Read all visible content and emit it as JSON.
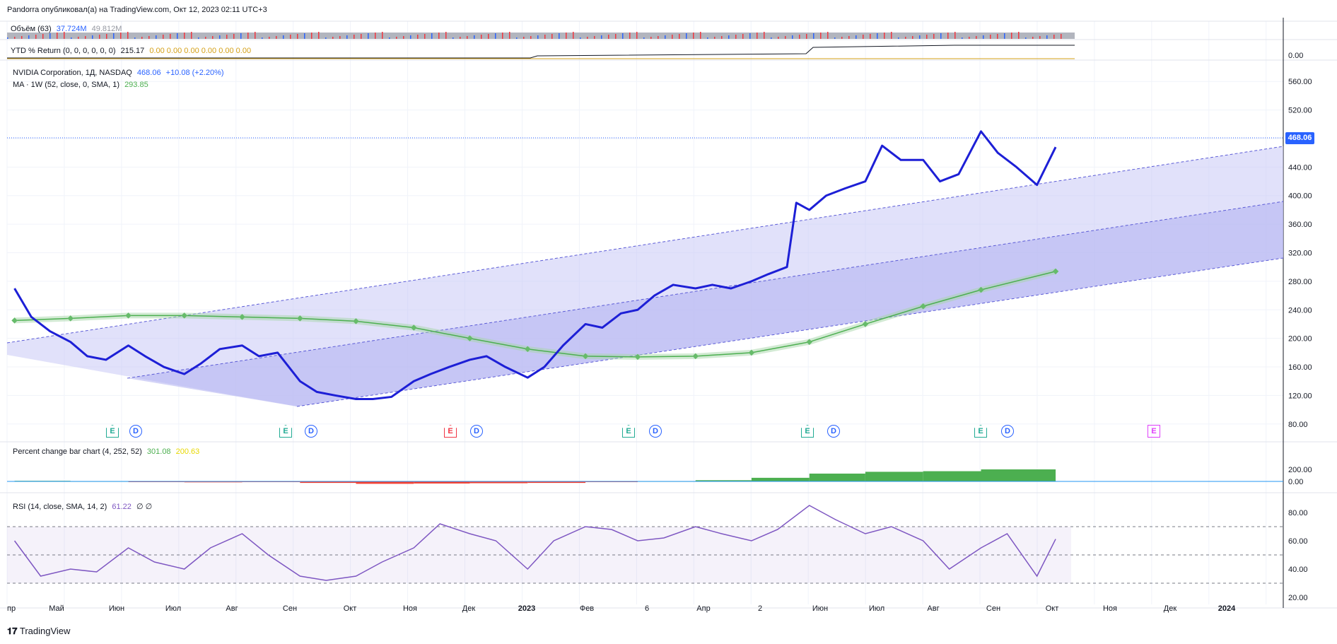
{
  "header": {
    "published": "Pandorra опубликовал(а) на TradingView.com, Окт 12, 2023 02:11 UTC+3"
  },
  "volume_pane": {
    "label": "Объём (63)",
    "value1": "37.724M",
    "value2": "49.812M"
  },
  "ytd_pane": {
    "label": "YTD % Return (0, 0, 0, 0, 0, 0)",
    "value": "215.17",
    "zeros": "0.00 0.00 0.00 0.00 0.00 0.00",
    "axis_label": "0.00"
  },
  "main_pane": {
    "symbol": "NVIDIA Corporation, 1Д, NASDAQ",
    "last": "468.06",
    "change": "+10.08 (+2.20%)",
    "ma_label": "MA · 1W (52, close, 0, SMA, 1)",
    "ma_value": "293.85",
    "price_tag": "468.06"
  },
  "pct_pane": {
    "label": "Percent change bar chart (4, 252, 52)",
    "value1": "301.08",
    "value2": "200.63"
  },
  "rsi_pane": {
    "label": "RSI (14, close, SMA, 14, 2)",
    "value": "61.22",
    "extra": "∅ ∅"
  },
  "events": [
    {
      "type": "E",
      "color": "green"
    },
    {
      "type": "D"
    },
    {
      "type": "E",
      "color": "green"
    },
    {
      "type": "D"
    },
    {
      "type": "E",
      "color": "red"
    },
    {
      "type": "D"
    },
    {
      "type": "E",
      "color": "green"
    },
    {
      "type": "D"
    },
    {
      "type": "E",
      "color": "green"
    },
    {
      "type": "D"
    },
    {
      "type": "E",
      "color": "green"
    },
    {
      "type": "D"
    },
    {
      "type": "E",
      "color": "pink"
    }
  ],
  "footer": {
    "brand": "TradingView",
    "logo_icon": "tradingview-logo-icon"
  },
  "colors": {
    "price_line": "#1d1fd6",
    "ma_line": "#4caf50",
    "channel_fill": "#c8c8f5",
    "pct_positive": "#4caf50",
    "pct_negative": "#f44336",
    "rsi_line": "#7e57c2",
    "accent": "#2962ff"
  },
  "chart_data": [
    {
      "type": "line",
      "series": [
        {
          "name": "NVIDIA Corporation",
          "x": [
            "2022-04-01",
            "2022-04-10",
            "2022-04-20",
            "2022-05-01",
            "2022-05-10",
            "2022-05-20",
            "2022-06-01",
            "2022-06-10",
            "2022-06-20",
            "2022-07-01",
            "2022-07-10",
            "2022-07-20",
            "2022-08-01",
            "2022-08-10",
            "2022-08-20",
            "2022-09-01",
            "2022-09-10",
            "2022-09-20",
            "2022-10-01",
            "2022-10-10",
            "2022-10-20",
            "2022-11-01",
            "2022-11-10",
            "2022-11-20",
            "2022-12-01",
            "2022-12-10",
            "2022-12-20",
            "2023-01-01",
            "2023-01-10",
            "2023-01-20",
            "2023-02-01",
            "2023-02-10",
            "2023-02-20",
            "2023-03-01",
            "2023-03-10",
            "2023-03-20",
            "2023-04-01",
            "2023-04-10",
            "2023-04-20",
            "2023-05-01",
            "2023-05-10",
            "2023-05-20",
            "2023-05-25",
            "2023-06-01",
            "2023-06-10",
            "2023-06-20",
            "2023-07-01",
            "2023-07-10",
            "2023-07-20",
            "2023-08-01",
            "2023-08-10",
            "2023-08-20",
            "2023-09-01",
            "2023-09-10",
            "2023-09-20",
            "2023-10-01",
            "2023-10-11"
          ],
          "values": [
            270,
            230,
            210,
            195,
            175,
            170,
            190,
            175,
            160,
            150,
            165,
            185,
            190,
            175,
            180,
            140,
            125,
            120,
            115,
            115,
            118,
            140,
            150,
            160,
            170,
            175,
            160,
            145,
            160,
            190,
            220,
            215,
            235,
            240,
            260,
            275,
            270,
            275,
            270,
            280,
            290,
            300,
            390,
            380,
            400,
            410,
            420,
            470,
            450,
            450,
            420,
            430,
            490,
            460,
            440,
            415,
            468
          ]
        },
        {
          "name": "MA · 1W (52, close, 0, SMA, 1)",
          "x": [
            "2022-04-01",
            "2022-05-01",
            "2022-06-01",
            "2022-07-01",
            "2022-08-01",
            "2022-09-01",
            "2022-10-01",
            "2022-11-01",
            "2022-12-01",
            "2023-01-01",
            "2023-02-01",
            "2023-03-01",
            "2023-04-01",
            "2023-05-01",
            "2023-06-01",
            "2023-07-01",
            "2023-08-01",
            "2023-09-01",
            "2023-10-11"
          ],
          "values": [
            225,
            228,
            232,
            232,
            230,
            228,
            224,
            215,
            200,
            185,
            175,
            174,
            175,
            180,
            195,
            220,
            245,
            268,
            293.85
          ]
        }
      ],
      "yticks": [
        80,
        120,
        160,
        200,
        240,
        280,
        320,
        360,
        400,
        440,
        480,
        520,
        560
      ],
      "ylim": [
        60,
        580
      ]
    },
    {
      "type": "line",
      "series": [
        {
          "name": "RSI (14, close, SMA, 14, 2)",
          "x": [
            "2022-04-01",
            "2022-04-15",
            "2022-05-01",
            "2022-05-15",
            "2022-06-01",
            "2022-06-15",
            "2022-07-01",
            "2022-07-15",
            "2022-08-01",
            "2022-08-15",
            "2022-09-01",
            "2022-09-15",
            "2022-10-01",
            "2022-10-15",
            "2022-11-01",
            "2022-11-15",
            "2022-12-01",
            "2022-12-15",
            "2023-01-01",
            "2023-01-15",
            "2023-02-01",
            "2023-02-15",
            "2023-03-01",
            "2023-03-15",
            "2023-04-01",
            "2023-04-15",
            "2023-05-01",
            "2023-05-15",
            "2023-06-01",
            "2023-06-15",
            "2023-07-01",
            "2023-07-15",
            "2023-08-01",
            "2023-08-15",
            "2023-09-01",
            "2023-09-15",
            "2023-10-01",
            "2023-10-11"
          ],
          "values": [
            60,
            35,
            40,
            38,
            55,
            45,
            40,
            55,
            65,
            50,
            35,
            32,
            35,
            45,
            55,
            72,
            65,
            60,
            40,
            60,
            70,
            68,
            60,
            62,
            70,
            65,
            60,
            68,
            85,
            75,
            65,
            70,
            60,
            40,
            55,
            65,
            35,
            61.22
          ]
        }
      ],
      "yticks": [
        20,
        40,
        60,
        80
      ],
      "ylim": [
        15,
        90
      ]
    },
    {
      "type": "bar",
      "series": [
        {
          "name": "Percent change bar chart (4, 252, 52)",
          "x": [
            "2022-04-01",
            "2022-05-01",
            "2022-06-01",
            "2022-07-01",
            "2022-08-01",
            "2022-09-01",
            "2022-10-01",
            "2022-11-01",
            "2022-12-01",
            "2023-01-01",
            "2023-02-01",
            "2023-03-01",
            "2023-04-01",
            "2023-05-01",
            "2023-06-01",
            "2023-07-01",
            "2023-08-01",
            "2023-09-01",
            "2023-10-11"
          ],
          "values": [
            10,
            5,
            -5,
            -15,
            -10,
            -25,
            -40,
            -35,
            -30,
            -25,
            -5,
            5,
            20,
            60,
            130,
            160,
            170,
            200,
            301.08
          ]
        }
      ],
      "yticks": [
        0,
        200
      ]
    }
  ],
  "x_axis": {
    "labels": [
      "пр",
      "Май",
      "Июн",
      "Июл",
      "Авг",
      "Сен",
      "Окт",
      "Ноя",
      "Дек",
      "2023",
      "Фев",
      "6",
      "Апр",
      "2",
      "Июн",
      "Июл",
      "Авг",
      "Сен",
      "Окт",
      "Ноя",
      "Дек",
      "2024"
    ]
  }
}
